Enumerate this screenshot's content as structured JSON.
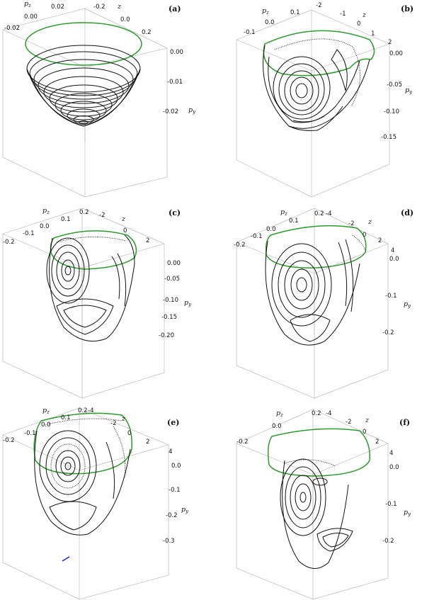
{
  "panels": [
    {
      "label": "(a)",
      "pz_label": "p",
      "pz_sub": "z",
      "z_label": "z",
      "py_label": "p",
      "py_sub": "y",
      "pz_ticks": [
        "0.02",
        "0.00",
        "-0.02"
      ],
      "z_ticks": [
        "-0.2",
        "0.0",
        "0.2"
      ],
      "py_ticks": [
        "0.00",
        "-0.01",
        "-0.02"
      ]
    },
    {
      "label": "(b)",
      "pz_label": "p",
      "pz_sub": "z",
      "z_label": "z",
      "py_label": "p",
      "py_sub": "y",
      "pz_ticks": [
        "0.1",
        "0.0",
        "-0.1"
      ],
      "z_ticks": [
        "-2",
        "-1",
        "0",
        "1",
        "2"
      ],
      "py_ticks": [
        "0.00",
        "-0.05",
        "-0.10",
        "-0.15"
      ]
    },
    {
      "label": "(c)",
      "pz_label": "p",
      "pz_sub": "z",
      "z_label": "z",
      "py_label": "p",
      "py_sub": "y",
      "pz_ticks": [
        "0.2",
        "0.1",
        "0.0",
        "-0.1",
        "-0.2"
      ],
      "z_ticks": [
        "-2",
        "0",
        "2"
      ],
      "py_ticks": [
        "0.00",
        "-0.05",
        "-0.10",
        "-0.15",
        "-0.20"
      ]
    },
    {
      "label": "(d)",
      "pz_label": "p",
      "pz_sub": "z",
      "z_label": "z",
      "py_label": "p",
      "py_sub": "y",
      "pz_ticks": [
        "0.2",
        "0.1",
        "0.0",
        "-0.1",
        "-0.2"
      ],
      "z_ticks": [
        "-4",
        "-2",
        "0",
        "2",
        "4"
      ],
      "py_ticks": [
        "0.0",
        "-0.1",
        "-0.2"
      ]
    },
    {
      "label": "(e)",
      "pz_label": "p",
      "pz_sub": "z",
      "z_label": "z",
      "py_label": "p",
      "py_sub": "y",
      "pz_ticks": [
        "0.2",
        "0.1",
        "0.0",
        "-0.1",
        "-0.2"
      ],
      "z_ticks": [
        "-4",
        "-2",
        "0",
        "2",
        "4"
      ],
      "py_ticks": [
        "0.0",
        "-0.1",
        "-0.2",
        "-0.3"
      ]
    },
    {
      "label": "(f)",
      "pz_label": "p",
      "pz_sub": "z",
      "z_label": "z",
      "py_label": "p",
      "py_sub": "y",
      "pz_ticks": [
        "0.2",
        "0.0",
        "-0.2"
      ],
      "z_ticks": [
        "-4",
        "-2",
        "0",
        "2",
        "4"
      ],
      "py_ticks": [
        "0.0",
        "-0.1",
        "-0.2"
      ]
    }
  ],
  "colors": {
    "section_curve": "#2f9a2f",
    "orbits": "#111111",
    "box": "#b0b0b0",
    "marker": "#2222cc"
  }
}
